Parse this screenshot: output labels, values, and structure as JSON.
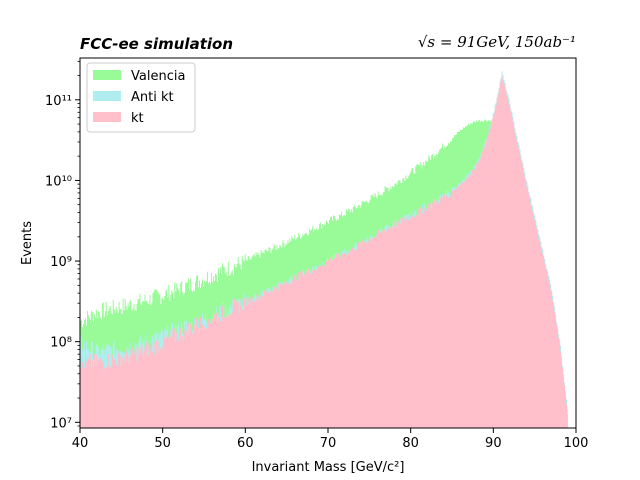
{
  "chart_data": {
    "type": "area",
    "title_left": "FCC-ee simulation",
    "title_right": "√s = 91GeV, 150ab⁻¹",
    "xlabel": "Invariant Mass [GeV/c²]",
    "ylabel": "Events",
    "xlim": [
      40,
      100
    ],
    "ylim": [
      8500000,
      330000000000
    ],
    "yscale": "log",
    "grid": false,
    "legend_position": "top-left",
    "x_ticks": [
      "40",
      "50",
      "60",
      "70",
      "80",
      "90",
      "100"
    ],
    "y_ticks": [
      {
        "value": 10000000,
        "label": "10⁷"
      },
      {
        "value": 100000000,
        "label": "10⁸"
      },
      {
        "value": 1000000000,
        "label": "10⁹"
      },
      {
        "value": 10000000000,
        "label": "10¹⁰"
      },
      {
        "value": 100000000000,
        "label": "10¹¹"
      }
    ],
    "x": [
      40,
      42,
      44,
      46,
      48,
      50,
      52,
      54,
      56,
      58,
      60,
      62,
      64,
      66,
      68,
      70,
      72,
      74,
      76,
      78,
      80,
      82,
      84,
      86,
      87,
      88,
      89,
      90,
      91,
      92,
      93,
      94,
      95,
      96,
      97,
      98,
      99
    ],
    "series": [
      {
        "name": "Valencia",
        "color": "#98fb98",
        "values": [
          180000000,
          230000000,
          260000000,
          290000000,
          330000000,
          380000000,
          450000000,
          550000000,
          680000000,
          820000000,
          1000000000,
          1250000000,
          1550000000,
          1950000000,
          2450000000,
          3100000000,
          3900000000,
          5100000000,
          6700000000,
          9000000000,
          12500000000,
          18000000000,
          27000000000,
          42000000000,
          50000000000,
          55000000000,
          56000000000,
          55000000000,
          150000000000,
          58000000000,
          22000000000,
          7800000000,
          2600000000,
          950000000,
          350000000,
          70000000,
          10000000
        ]
      },
      {
        "name": "Anti kt",
        "color": "#afeeee",
        "values": [
          95000000,
          75000000,
          80000000,
          90000000,
          100000000,
          120000000,
          145000000,
          170000000,
          210000000,
          260000000,
          320000000,
          400000000,
          500000000,
          630000000,
          800000000,
          1020000000,
          1300000000,
          1680000000,
          2200000000,
          2900000000,
          3700000000,
          4900000000,
          6500000000,
          9300000000,
          12000000000,
          17000000000,
          30000000000,
          70000000000,
          220000000000,
          85000000000,
          28000000000,
          9500000000,
          3400000000,
          1250000000,
          450000000,
          100000000,
          13000000
        ]
      },
      {
        "name": "kt",
        "color": "#ffc0cb",
        "values": [
          55000000,
          55000000,
          60000000,
          68000000,
          80000000,
          100000000,
          125000000,
          160000000,
          200000000,
          250000000,
          310000000,
          390000000,
          490000000,
          620000000,
          780000000,
          1000000000,
          1280000000,
          1650000000,
          2150000000,
          2850000000,
          3600000000,
          4700000000,
          6200000000,
          9000000000,
          11500000000,
          16000000000,
          28000000000,
          65000000000,
          200000000000,
          75000000000,
          25000000000,
          8500000000,
          3000000000,
          1100000000,
          400000000,
          90000000,
          11000000
        ]
      }
    ]
  }
}
